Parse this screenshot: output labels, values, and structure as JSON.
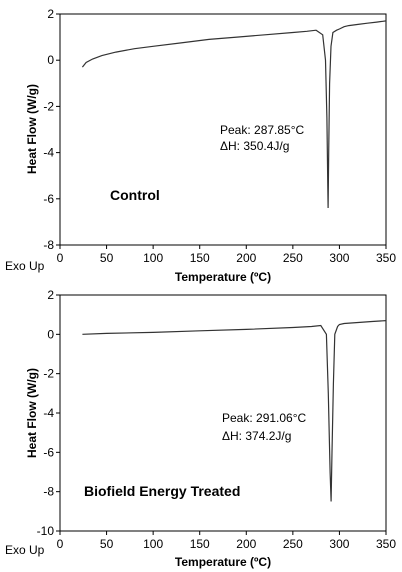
{
  "chart_data": [
    {
      "type": "line",
      "caption": "Control",
      "xlabel": "Temperature (ºC)",
      "ylabel": "Heat Flow (W/g)",
      "corner_label": "Exo Up",
      "xlim": [
        0,
        350
      ],
      "ylim": [
        -8,
        2
      ],
      "xticks": [
        0,
        50,
        100,
        150,
        200,
        250,
        300,
        350
      ],
      "yticks": [
        2,
        0,
        -2,
        -4,
        -6,
        -8
      ],
      "annotation": {
        "peak": "Peak: 287.85°C",
        "dh": "ΔH: 350.4J/g"
      },
      "series": [
        {
          "x": [
            24,
            28,
            35,
            45,
            60,
            80,
            100,
            130,
            160,
            190,
            220,
            250,
            265,
            275,
            282,
            285,
            286.5,
            287.5,
            287.85,
            288.5,
            289.5,
            291,
            293,
            297,
            300,
            305,
            310,
            320,
            330,
            340,
            350
          ],
          "y": [
            -0.3,
            -0.1,
            0.05,
            0.2,
            0.35,
            0.5,
            0.6,
            0.75,
            0.9,
            1.0,
            1.1,
            1.2,
            1.25,
            1.3,
            1.1,
            0.0,
            -2.5,
            -5.5,
            -6.4,
            -4.0,
            -1.0,
            0.6,
            1.2,
            1.3,
            1.35,
            1.45,
            1.5,
            1.55,
            1.6,
            1.65,
            1.7
          ]
        }
      ]
    },
    {
      "type": "line",
      "caption": "Biofield Energy Treated",
      "xlabel": "Temperature (ºC)",
      "ylabel": "Heat Flow (W/g)",
      "corner_label": "Exo Up",
      "xlim": [
        0,
        350
      ],
      "ylim": [
        -10,
        2
      ],
      "xticks": [
        0,
        50,
        100,
        150,
        200,
        250,
        300,
        350
      ],
      "yticks": [
        2,
        0,
        -2,
        -4,
        -6,
        -8,
        -10
      ],
      "annotation": {
        "peak": "Peak: 291.06°C",
        "dh": "ΔH: 374.2J/g"
      },
      "series": [
        {
          "x": [
            24,
            50,
            100,
            150,
            200,
            250,
            270,
            280,
            286,
            288,
            290,
            291.06,
            292,
            293.5,
            295,
            298,
            300,
            305,
            320,
            335,
            350
          ],
          "y": [
            0.0,
            0.05,
            0.1,
            0.18,
            0.25,
            0.35,
            0.4,
            0.45,
            0.0,
            -3.0,
            -7.0,
            -8.5,
            -6.0,
            -2.5,
            0.0,
            0.4,
            0.5,
            0.55,
            0.6,
            0.65,
            0.7
          ]
        }
      ]
    }
  ]
}
